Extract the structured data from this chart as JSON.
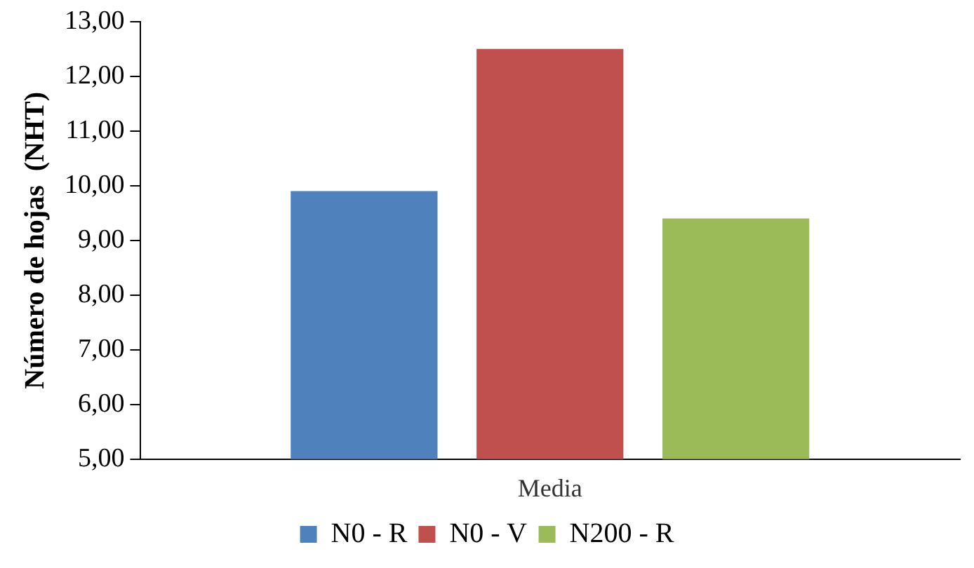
{
  "chart_data": {
    "type": "bar",
    "ylabel": "Número de hojas  (NHT)",
    "categories": [
      "Media"
    ],
    "series": [
      {
        "name": "N0 - R",
        "color": "#4f81bd",
        "values": [
          9.9
        ]
      },
      {
        "name": "N0 - V",
        "color": "#c0504d",
        "values": [
          12.5
        ]
      },
      {
        "name": "N200 - R",
        "color": "#9bbb59",
        "values": [
          9.4
        ]
      }
    ],
    "ylim": [
      5,
      13
    ],
    "yticks": [
      {
        "value": 5,
        "label": "5,00"
      },
      {
        "value": 6,
        "label": "6,00"
      },
      {
        "value": 7,
        "label": "7,00"
      },
      {
        "value": 8,
        "label": "8,00"
      },
      {
        "value": 9,
        "label": "9,00"
      },
      {
        "value": 10,
        "label": "10,00"
      },
      {
        "value": 11,
        "label": "11,00"
      },
      {
        "value": 12,
        "label": "12,00"
      },
      {
        "value": 13,
        "label": "13,00"
      }
    ],
    "legend": "bottom"
  }
}
